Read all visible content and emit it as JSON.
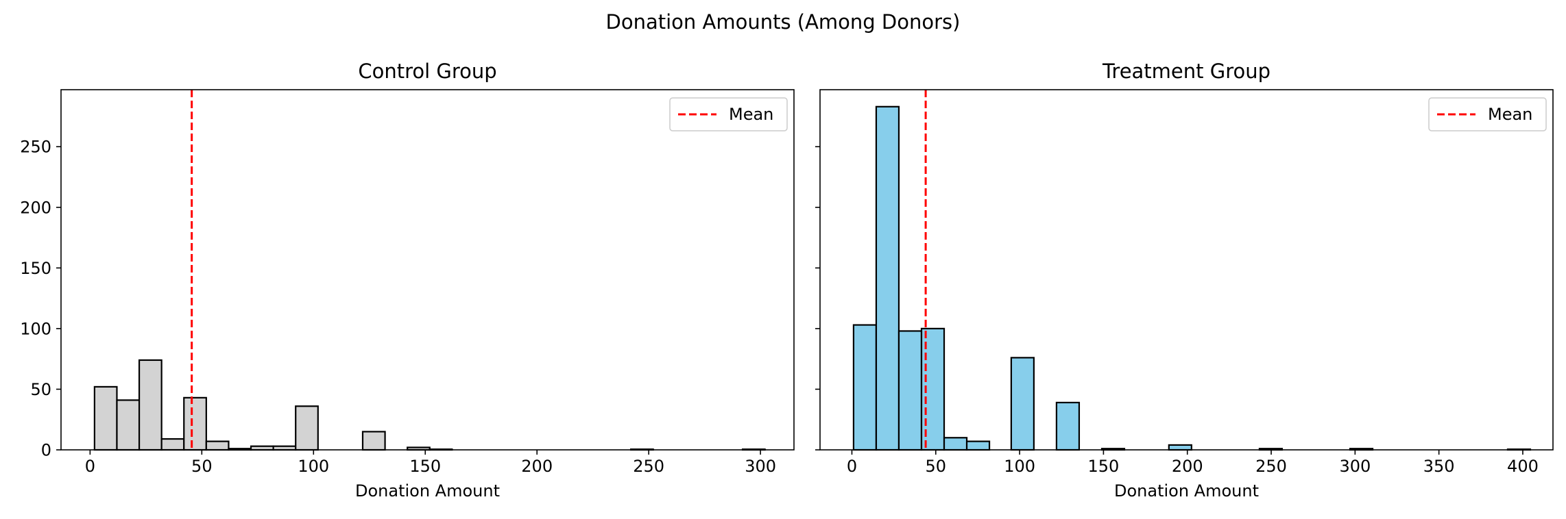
{
  "figure_title": "Donation Amounts (Among Donors)",
  "chart_data": [
    {
      "type": "bar",
      "title": "Control Group",
      "xlabel": "Donation Amount",
      "ylabel": "",
      "xlim": [
        -13,
        315
      ],
      "ylim": [
        0,
        297
      ],
      "xticks": [
        0,
        50,
        100,
        150,
        200,
        250,
        300
      ],
      "yticks": [
        0,
        50,
        100,
        150,
        200,
        250
      ],
      "ytick_labels_visible": true,
      "bar_color": "#d3d3d3",
      "edge_color": "#000000",
      "bins": [
        {
          "x0": 2,
          "x1": 12,
          "count": 52
        },
        {
          "x0": 12,
          "x1": 22,
          "count": 41
        },
        {
          "x0": 22,
          "x1": 32,
          "count": 74
        },
        {
          "x0": 32,
          "x1": 42,
          "count": 9
        },
        {
          "x0": 42,
          "x1": 52,
          "count": 43
        },
        {
          "x0": 52,
          "x1": 62,
          "count": 7
        },
        {
          "x0": 62,
          "x1": 72,
          "count": 1
        },
        {
          "x0": 72,
          "x1": 82,
          "count": 3
        },
        {
          "x0": 82,
          "x1": 92,
          "count": 3
        },
        {
          "x0": 92,
          "x1": 102,
          "count": 36
        },
        {
          "x0": 122,
          "x1": 132,
          "count": 15
        },
        {
          "x0": 142,
          "x1": 152,
          "count": 2
        },
        {
          "x0": 152,
          "x1": 162,
          "count": 0.5
        },
        {
          "x0": 242,
          "x1": 252,
          "count": 0.5
        },
        {
          "x0": 292,
          "x1": 302,
          "count": 0.5
        }
      ],
      "mean": 45.5,
      "mean_color": "#ff0000",
      "legend": {
        "label": "Mean",
        "position": "top-right"
      }
    },
    {
      "type": "bar",
      "title": "Treatment Group",
      "xlabel": "Donation Amount",
      "ylabel": "",
      "xlim": [
        -19,
        418
      ],
      "ylim": [
        0,
        297
      ],
      "xticks": [
        0,
        50,
        100,
        150,
        200,
        250,
        300,
        350,
        400
      ],
      "yticks": [
        0,
        50,
        100,
        150,
        200,
        250
      ],
      "ytick_labels_visible": false,
      "bar_color": "#87ceeb",
      "edge_color": "#000000",
      "bins": [
        {
          "x0": 1,
          "x1": 14.5,
          "count": 103
        },
        {
          "x0": 14.5,
          "x1": 28,
          "count": 283
        },
        {
          "x0": 28,
          "x1": 41.5,
          "count": 98
        },
        {
          "x0": 41.5,
          "x1": 55,
          "count": 100
        },
        {
          "x0": 55,
          "x1": 68.5,
          "count": 10
        },
        {
          "x0": 68.5,
          "x1": 82,
          "count": 7
        },
        {
          "x0": 95,
          "x1": 108.5,
          "count": 76
        },
        {
          "x0": 122,
          "x1": 135.5,
          "count": 39
        },
        {
          "x0": 149,
          "x1": 162.5,
          "count": 1
        },
        {
          "x0": 189,
          "x1": 202.5,
          "count": 4
        },
        {
          "x0": 243,
          "x1": 256.5,
          "count": 1
        },
        {
          "x0": 297,
          "x1": 310.5,
          "count": 1
        },
        {
          "x0": 391,
          "x1": 404.5,
          "count": 0.5
        }
      ],
      "mean": 44,
      "mean_color": "#ff0000",
      "legend": {
        "label": "Mean",
        "position": "top-right"
      }
    }
  ]
}
